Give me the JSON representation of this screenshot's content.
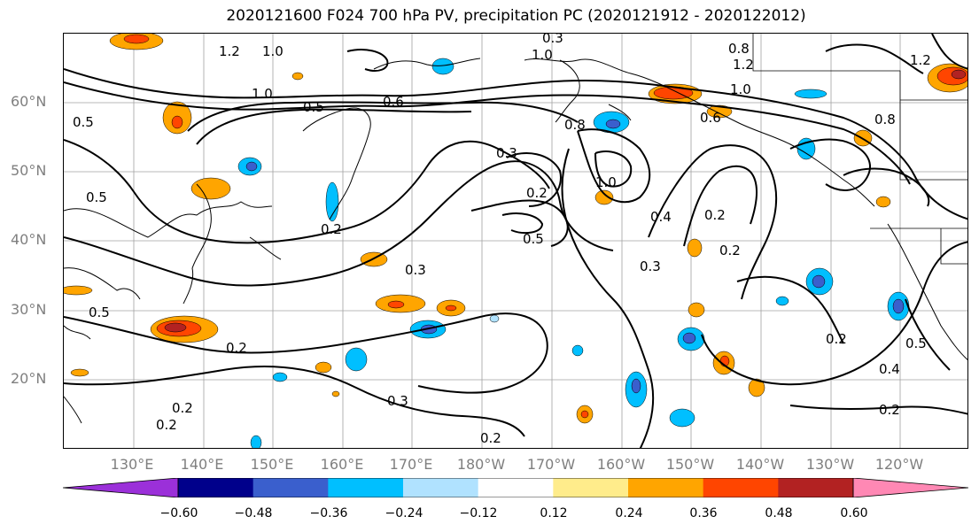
{
  "title": "2020121600 F024 700 hPa PV, precipitation PC (2020121912 - 2020122012)",
  "lat_labels": [
    "60°N",
    "50°N",
    "40°N",
    "30°N",
    "20°N"
  ],
  "lon_labels": [
    "130°E",
    "140°E",
    "150°E",
    "160°E",
    "170°E",
    "180°W",
    "170°W",
    "160°W",
    "150°W",
    "140°W",
    "130°W",
    "120°W"
  ],
  "contour_labels": [
    "1.0",
    "1.2",
    "1.2",
    "1.0",
    "0.8",
    "0.8",
    "1.0",
    "1.2",
    "0.5",
    "0.5",
    "0.5",
    "0.6",
    "1.0",
    "0.2",
    "0.3",
    "0.5",
    "0.3",
    "0.2",
    "0.2",
    "0.2",
    "0.3",
    "0.2",
    "0.2",
    "0.4",
    "0.3",
    "0.2",
    "0.6",
    "1.0",
    "0.8",
    "0.5",
    "0.2",
    "0.4",
    "0.5",
    "0.2",
    "0.2",
    "0.3"
  ],
  "colorbar": {
    "ticks": [
      "−0.60",
      "−0.48",
      "−0.36",
      "−0.24",
      "−0.12",
      "0.12",
      "0.24",
      "0.36",
      "0.48",
      "0.60"
    ],
    "colors": [
      "#9b30d9",
      "#00008b",
      "#3a5fcd",
      "#00bfff",
      "#b0e2ff",
      "#ffffff",
      "#ffec8b",
      "#ffa500",
      "#ff4500",
      "#b22222",
      "#ff88b4"
    ]
  },
  "map": {
    "projection": "PlateCarree",
    "lon_range": [
      "120°E",
      "115°W"
    ],
    "lat_range": [
      "10°N",
      "70°N"
    ],
    "gridlines": true,
    "field": "700 hPa PV",
    "shading": "precipitation PC"
  }
}
